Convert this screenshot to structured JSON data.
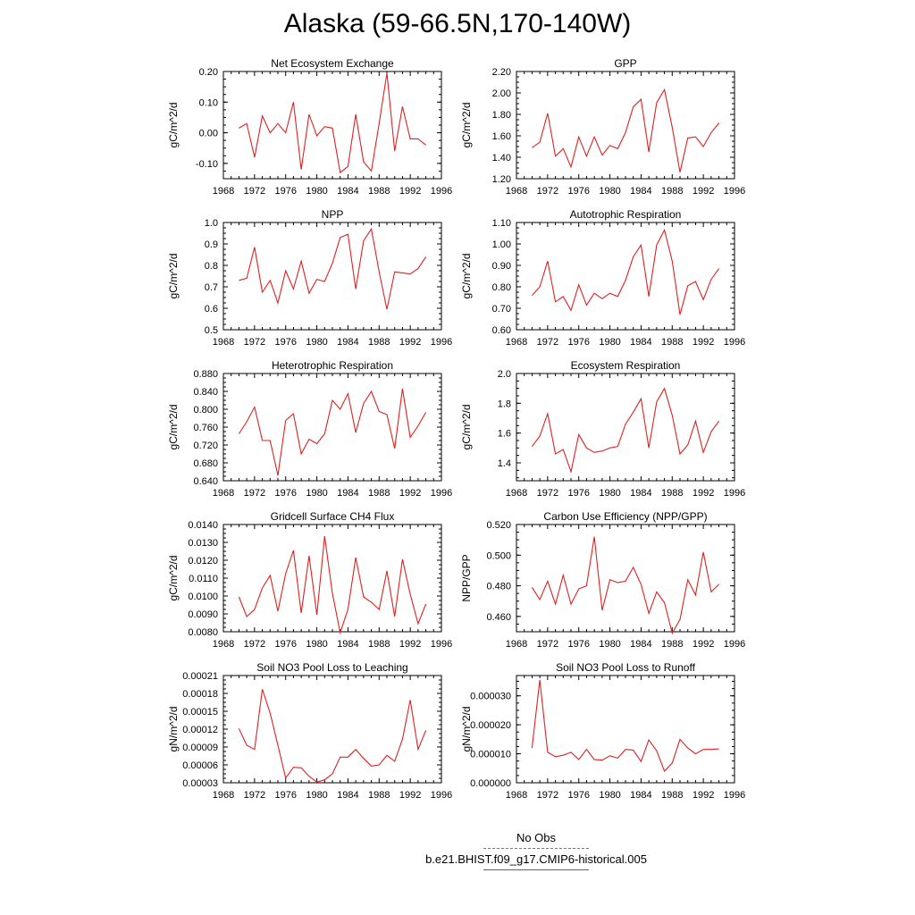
{
  "title": "Alaska (59-66.5N,170-140W)",
  "legend": {
    "items": [
      {
        "label": "No Obs",
        "color": "#6a6ad8",
        "dash": true
      },
      {
        "label": "b.e21.BHIST.f09_g17.CMIP6-historical.005",
        "color": "#e03030",
        "dash": false
      }
    ]
  },
  "chart_data": [
    {
      "type": "line",
      "title": "Net Ecosystem Exchange",
      "ylabel": "gC/m^2/d",
      "xlim": [
        1968,
        1996
      ],
      "xticks": [
        1968,
        1972,
        1976,
        1980,
        1984,
        1988,
        1992,
        1996
      ],
      "ylim": [
        -0.15,
        0.2
      ],
      "yticks": [
        "0.20",
        "0.10",
        "0.00",
        "-0.10"
      ],
      "ytick_values": [
        0.2,
        0.1,
        0.0,
        -0.1
      ],
      "x": [
        1970,
        1971,
        1972,
        1973,
        1974,
        1975,
        1976,
        1977,
        1978,
        1979,
        1980,
        1981,
        1982,
        1983,
        1984,
        1985,
        1986,
        1987,
        1988,
        1989,
        1990,
        1991,
        1992,
        1993,
        1994
      ],
      "series": [
        {
          "values": [
            0.015,
            0.03,
            -0.08,
            0.055,
            0.0,
            0.03,
            0.0,
            0.1,
            -0.12,
            0.06,
            -0.01,
            0.02,
            0.015,
            -0.13,
            -0.11,
            0.06,
            -0.095,
            -0.125,
            0.03,
            0.195,
            -0.06,
            0.085,
            -0.02,
            -0.02,
            -0.04
          ],
          "color": "#e02020"
        }
      ]
    },
    {
      "type": "line",
      "title": "GPP",
      "ylabel": "gC/m^2/d",
      "xlim": [
        1968,
        1996
      ],
      "xticks": [
        1968,
        1972,
        1976,
        1980,
        1984,
        1988,
        1992,
        1996
      ],
      "ylim": [
        1.2,
        2.2
      ],
      "yticks": [
        "2.20",
        "2.00",
        "1.80",
        "1.60",
        "1.40",
        "1.20"
      ],
      "ytick_values": [
        2.2,
        2.0,
        1.8,
        1.6,
        1.4,
        1.2
      ],
      "x": [
        1970,
        1971,
        1972,
        1973,
        1974,
        1975,
        1976,
        1977,
        1978,
        1979,
        1980,
        1981,
        1982,
        1983,
        1984,
        1985,
        1986,
        1987,
        1988,
        1989,
        1990,
        1991,
        1992,
        1993,
        1994
      ],
      "series": [
        {
          "values": [
            1.49,
            1.54,
            1.81,
            1.41,
            1.48,
            1.31,
            1.59,
            1.41,
            1.59,
            1.42,
            1.51,
            1.48,
            1.63,
            1.87,
            1.94,
            1.45,
            1.91,
            2.03,
            1.68,
            1.26,
            1.58,
            1.59,
            1.5,
            1.63,
            1.72
          ],
          "color": "#e02020"
        }
      ]
    },
    {
      "type": "line",
      "title": "NPP",
      "ylabel": "gC/m^2/d",
      "xlim": [
        1968,
        1996
      ],
      "xticks": [
        1968,
        1972,
        1976,
        1980,
        1984,
        1988,
        1992,
        1996
      ],
      "ylim": [
        0.5,
        1.0
      ],
      "yticks": [
        "1.0",
        "0.9",
        "0.8",
        "0.7",
        "0.6",
        "0.5"
      ],
      "ytick_values": [
        1.0,
        0.9,
        0.8,
        0.7,
        0.6,
        0.5
      ],
      "x": [
        1970,
        1971,
        1972,
        1973,
        1974,
        1975,
        1976,
        1977,
        1978,
        1979,
        1980,
        1981,
        1982,
        1983,
        1984,
        1985,
        1986,
        1987,
        1988,
        1989,
        1990,
        1991,
        1992,
        1993,
        1994
      ],
      "series": [
        {
          "values": [
            0.73,
            0.74,
            0.885,
            0.675,
            0.73,
            0.625,
            0.775,
            0.69,
            0.82,
            0.67,
            0.735,
            0.725,
            0.81,
            0.93,
            0.945,
            0.69,
            0.915,
            0.97,
            0.77,
            0.595,
            0.77,
            0.765,
            0.76,
            0.785,
            0.84
          ],
          "color": "#e02020"
        }
      ]
    },
    {
      "type": "line",
      "title": "Autotrophic Respiration",
      "ylabel": "gC/m^2/d",
      "xlim": [
        1968,
        1996
      ],
      "xticks": [
        1968,
        1972,
        1976,
        1980,
        1984,
        1988,
        1992,
        1996
      ],
      "ylim": [
        0.6,
        1.1
      ],
      "yticks": [
        "1.10",
        "1.00",
        "0.90",
        "0.80",
        "0.70",
        "0.60"
      ],
      "ytick_values": [
        1.1,
        1.0,
        0.9,
        0.8,
        0.7,
        0.6
      ],
      "x": [
        1970,
        1971,
        1972,
        1973,
        1974,
        1975,
        1976,
        1977,
        1978,
        1979,
        1980,
        1981,
        1982,
        1983,
        1984,
        1985,
        1986,
        1987,
        1988,
        1989,
        1990,
        1991,
        1992,
        1993,
        1994
      ],
      "series": [
        {
          "values": [
            0.76,
            0.8,
            0.92,
            0.73,
            0.755,
            0.69,
            0.81,
            0.715,
            0.77,
            0.745,
            0.77,
            0.755,
            0.83,
            0.94,
            0.995,
            0.755,
            0.995,
            1.065,
            0.92,
            0.67,
            0.805,
            0.825,
            0.74,
            0.835,
            0.885
          ],
          "color": "#e02020"
        }
      ]
    },
    {
      "type": "line",
      "title": "Heterotrophic Respiration",
      "ylabel": "gC/m^2/d",
      "xlim": [
        1968,
        1996
      ],
      "xticks": [
        1968,
        1972,
        1976,
        1980,
        1984,
        1988,
        1992,
        1996
      ],
      "ylim": [
        0.64,
        0.88
      ],
      "yticks": [
        "0.880",
        "0.840",
        "0.800",
        "0.760",
        "0.720",
        "0.680",
        "0.640"
      ],
      "ytick_values": [
        0.88,
        0.84,
        0.8,
        0.76,
        0.72,
        0.68,
        0.64
      ],
      "x": [
        1970,
        1971,
        1972,
        1973,
        1974,
        1975,
        1976,
        1977,
        1978,
        1979,
        1980,
        1981,
        1982,
        1983,
        1984,
        1985,
        1986,
        1987,
        1988,
        1989,
        1990,
        1991,
        1992,
        1993,
        1994
      ],
      "series": [
        {
          "values": [
            0.745,
            0.772,
            0.805,
            0.73,
            0.73,
            0.652,
            0.775,
            0.79,
            0.7,
            0.733,
            0.723,
            0.745,
            0.82,
            0.8,
            0.835,
            0.748,
            0.813,
            0.84,
            0.795,
            0.788,
            0.712,
            0.846,
            0.737,
            0.763,
            0.793
          ],
          "color": "#e02020"
        }
      ]
    },
    {
      "type": "line",
      "title": "Ecosystem Respiration",
      "ylabel": "gC/m^2/d",
      "xlim": [
        1968,
        1996
      ],
      "xticks": [
        1968,
        1972,
        1976,
        1980,
        1984,
        1988,
        1992,
        1996
      ],
      "ylim": [
        1.28,
        2.0
      ],
      "yticks": [
        "2.0",
        "1.8",
        "1.6",
        "1.4"
      ],
      "ytick_values": [
        2.0,
        1.8,
        1.6,
        1.4
      ],
      "x": [
        1970,
        1971,
        1972,
        1973,
        1974,
        1975,
        1976,
        1977,
        1978,
        1979,
        1980,
        1981,
        1982,
        1983,
        1984,
        1985,
        1986,
        1987,
        1988,
        1989,
        1990,
        1991,
        1992,
        1993,
        1994
      ],
      "series": [
        {
          "values": [
            1.51,
            1.58,
            1.73,
            1.46,
            1.49,
            1.34,
            1.59,
            1.5,
            1.47,
            1.48,
            1.5,
            1.51,
            1.66,
            1.74,
            1.83,
            1.5,
            1.81,
            1.9,
            1.72,
            1.46,
            1.52,
            1.68,
            1.47,
            1.61,
            1.68
          ],
          "color": "#e02020"
        }
      ]
    },
    {
      "type": "line",
      "title": "Gridcell Surface CH4 Flux",
      "ylabel": "gC/m^2/d",
      "xlim": [
        1968,
        1996
      ],
      "xticks": [
        1968,
        1972,
        1976,
        1980,
        1984,
        1988,
        1992,
        1996
      ],
      "ylim": [
        0.008,
        0.014
      ],
      "yticks": [
        "0.0140",
        "0.0130",
        "0.0120",
        "0.0110",
        "0.0100",
        "0.0090",
        "0.0080"
      ],
      "ytick_values": [
        0.014,
        0.013,
        0.012,
        0.011,
        0.01,
        0.009,
        0.008
      ],
      "x": [
        1970,
        1971,
        1972,
        1973,
        1974,
        1975,
        1976,
        1977,
        1978,
        1979,
        1980,
        1981,
        1982,
        1983,
        1984,
        1985,
        1986,
        1987,
        1988,
        1989,
        1990,
        1991,
        1992,
        1993,
        1994
      ],
      "series": [
        {
          "values": [
            0.00995,
            0.00885,
            0.00925,
            0.01045,
            0.01115,
            0.00915,
            0.01125,
            0.01255,
            0.00905,
            0.01225,
            0.00895,
            0.01335,
            0.01015,
            0.00795,
            0.00925,
            0.01215,
            0.00995,
            0.00965,
            0.00925,
            0.0114,
            0.00885,
            0.01205,
            0.0101,
            0.00845,
            0.00955
          ],
          "color": "#e02020"
        }
      ]
    },
    {
      "type": "line",
      "title": "Carbon Use Efficiency (NPP/GPP)",
      "ylabel": "NPP/GPP",
      "xlim": [
        1968,
        1996
      ],
      "xticks": [
        1968,
        1972,
        1976,
        1980,
        1984,
        1988,
        1992,
        1996
      ],
      "ylim": [
        0.45,
        0.52
      ],
      "yticks": [
        "0.520",
        "0.500",
        "0.480",
        "0.460"
      ],
      "ytick_values": [
        0.52,
        0.5,
        0.48,
        0.46
      ],
      "x": [
        1970,
        1971,
        1972,
        1973,
        1974,
        1975,
        1976,
        1977,
        1978,
        1979,
        1980,
        1981,
        1982,
        1983,
        1984,
        1985,
        1986,
        1987,
        1988,
        1989,
        1990,
        1991,
        1992,
        1993,
        1994
      ],
      "series": [
        {
          "values": [
            0.479,
            0.471,
            0.483,
            0.468,
            0.487,
            0.468,
            0.478,
            0.48,
            0.512,
            0.464,
            0.484,
            0.482,
            0.483,
            0.492,
            0.481,
            0.462,
            0.476,
            0.469,
            0.449,
            0.458,
            0.484,
            0.474,
            0.502,
            0.476,
            0.481
          ],
          "color": "#e02020"
        }
      ]
    },
    {
      "type": "line",
      "title": "Soil NO3 Pool Loss to Leaching",
      "ylabel": "gN/m^2/d",
      "xlim": [
        1968,
        1996
      ],
      "xticks": [
        1968,
        1972,
        1976,
        1980,
        1984,
        1988,
        1992,
        1996
      ],
      "ylim": [
        3e-05,
        0.00021
      ],
      "yticks": [
        "0.00021",
        "0.00018",
        "0.00015",
        "0.00012",
        "0.00009",
        "0.00006",
        "0.00003"
      ],
      "ytick_values": [
        0.00021,
        0.00018,
        0.00015,
        0.00012,
        9e-05,
        6e-05,
        3e-05
      ],
      "x": [
        1970,
        1971,
        1972,
        1973,
        1974,
        1975,
        1976,
        1977,
        1978,
        1979,
        1980,
        1981,
        1982,
        1983,
        1984,
        1985,
        1986,
        1987,
        1988,
        1989,
        1990,
        1991,
        1992,
        1993,
        1994
      ],
      "series": [
        {
          "values": [
            0.000121,
            9.3e-05,
            8.6e-05,
            0.000187,
            0.000147,
            9.3e-05,
            3.8e-05,
            5.6e-05,
            5.5e-05,
            4.1e-05,
            3.1e-05,
            3.5e-05,
            4.5e-05,
            7.3e-05,
            7.3e-05,
            8.6e-05,
            7.1e-05,
            5.8e-05,
            6e-05,
            7.6e-05,
            6.6e-05,
            0.000103,
            0.000169,
            8.6e-05,
            0.000118
          ],
          "color": "#e02020"
        }
      ]
    },
    {
      "type": "line",
      "title": "Soil NO3 Pool Loss to Runoff",
      "ylabel": "gN/m^2/d",
      "xlim": [
        1968,
        1996
      ],
      "xticks": [
        1968,
        1972,
        1976,
        1980,
        1984,
        1988,
        1992,
        1996
      ],
      "ylim": [
        0.0,
        3.7e-05
      ],
      "yticks": [
        "0.000030",
        "0.000020",
        "0.000010",
        "0.000000"
      ],
      "ytick_values": [
        3e-05,
        2e-05,
        1e-05,
        0.0
      ],
      "x": [
        1970,
        1971,
        1972,
        1973,
        1974,
        1975,
        1976,
        1977,
        1978,
        1979,
        1980,
        1981,
        1982,
        1983,
        1984,
        1985,
        1986,
        1987,
        1988,
        1989,
        1990,
        1991,
        1992,
        1993,
        1994
      ],
      "series": [
        {
          "values": [
            1.2e-05,
            3.55e-05,
            1.05e-05,
            9e-06,
            9.5e-06,
            1.05e-05,
            8e-06,
            1.15e-05,
            8e-06,
            7.8e-06,
            9.3e-06,
            8.5e-06,
            1.15e-05,
            1.13e-05,
            7.3e-06,
            1.48e-05,
            1.1e-05,
            4e-06,
            6.8e-06,
            1.5e-05,
            1.2e-05,
            1e-05,
            1.15e-05,
            1.15e-05,
            1.17e-05
          ],
          "color": "#e02020"
        }
      ]
    }
  ]
}
